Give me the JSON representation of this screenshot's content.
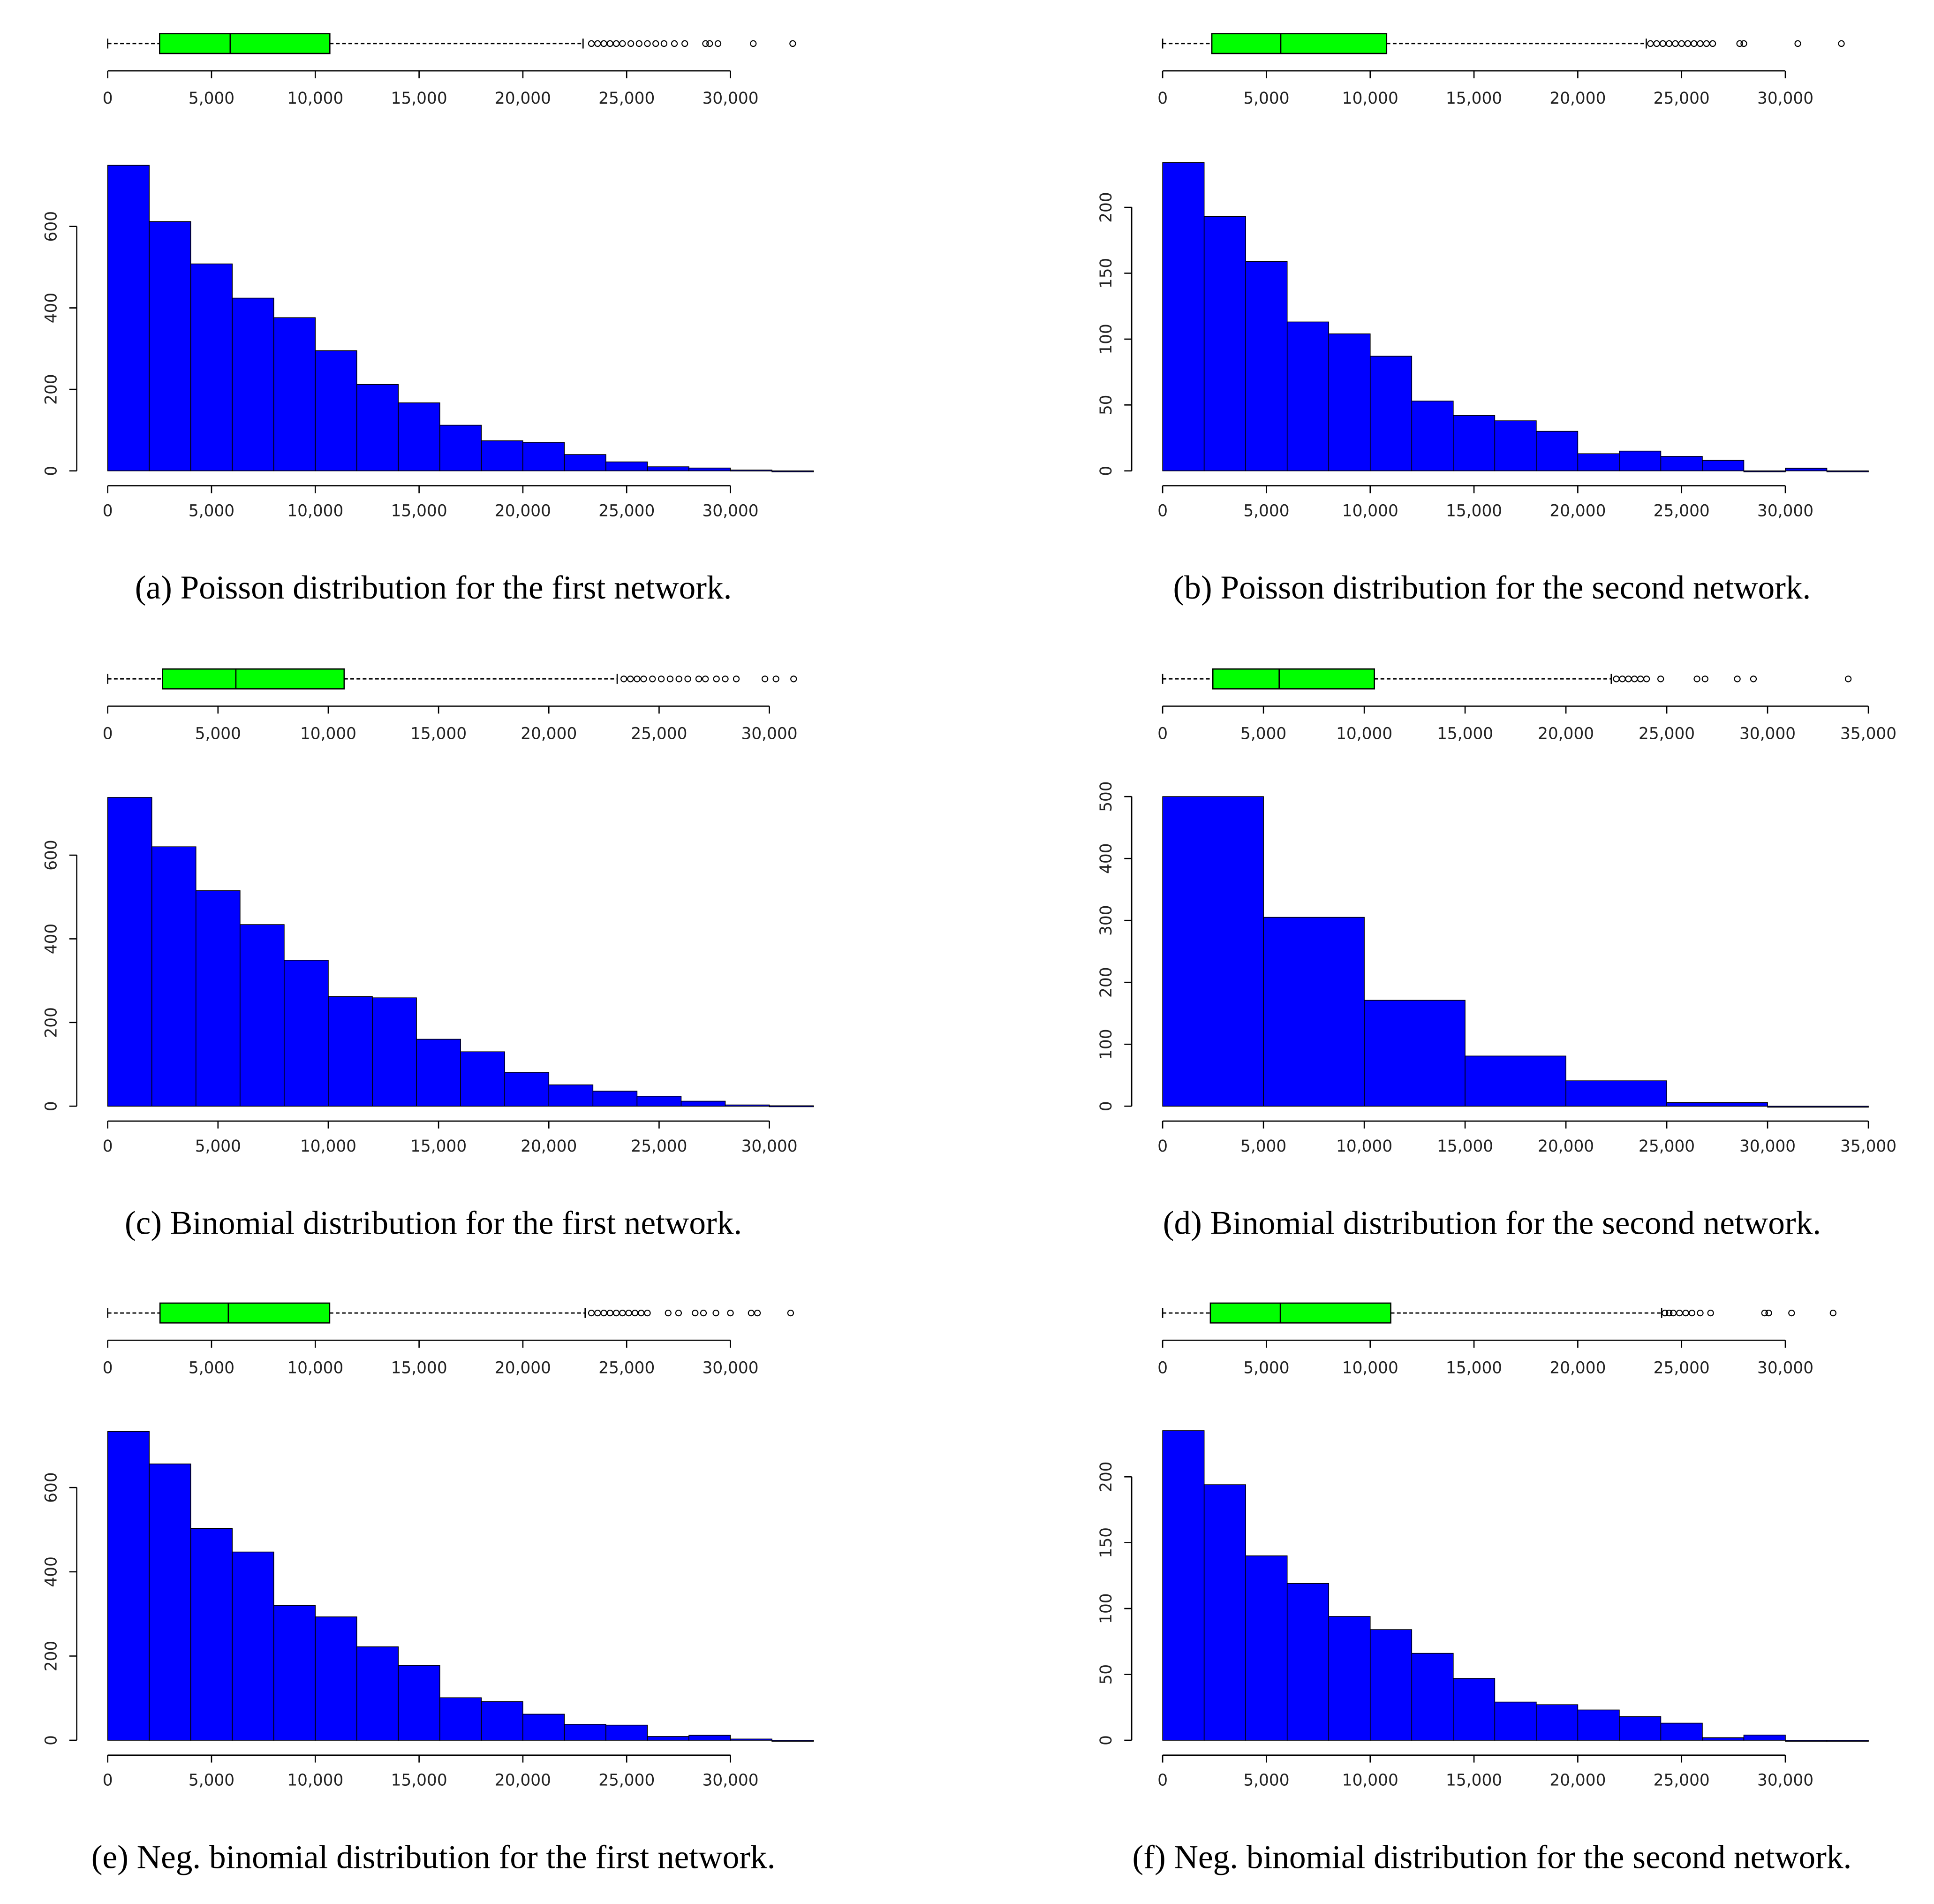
{
  "chart_data": [
    {
      "type": "histogram",
      "caption": "(a) Poisson distribution for the first network.",
      "bins": [
        0,
        2000,
        4000,
        6000,
        8000,
        10000,
        12000,
        14000,
        16000,
        18000,
        20000,
        22000,
        24000,
        26000,
        28000,
        30000,
        32000,
        34000
      ],
      "counts": [
        750,
        612,
        508,
        424,
        376,
        295,
        212,
        167,
        112,
        74,
        70,
        40,
        22,
        10,
        7,
        2,
        0
      ],
      "color": "#0000ff",
      "xlim": [
        0,
        34000
      ],
      "xticks": [
        0,
        {
          "value": 5000,
          "label": "5,000"
        },
        {
          "value": 10000,
          "label": "10,000"
        },
        {
          "value": 15000,
          "label": "15,000"
        },
        {
          "value": 20000,
          "label": "20,000"
        },
        {
          "value": 25000,
          "label": "25,000"
        },
        {
          "value": 30000,
          "label": "30,000"
        }
      ],
      "ylim": [
        0,
        760
      ],
      "yticks": [
        0,
        200,
        400,
        600
      ],
      "box": {
        "color": "#00ff00",
        "whisker_low": 0,
        "q1": 2500,
        "median": 5900,
        "q3": 10700,
        "whisker_high": 22900,
        "outliers": [
          23300,
          23600,
          23900,
          24200,
          24500,
          24800,
          25200,
          25600,
          26000,
          26400,
          26800,
          27300,
          27800,
          28800,
          29000,
          29400,
          31100,
          33000
        ]
      }
    },
    {
      "type": "histogram",
      "caption": "(b) Poisson distribution for the second network.",
      "bins": [
        0,
        2000,
        4000,
        6000,
        8000,
        10000,
        12000,
        14000,
        16000,
        18000,
        20000,
        22000,
        24000,
        26000,
        28000,
        30000,
        32000,
        34000
      ],
      "counts": [
        234,
        193,
        159,
        113,
        104,
        87,
        53,
        42,
        38,
        30,
        13,
        15,
        11,
        8,
        0,
        2,
        0
      ],
      "color": "#0000ff",
      "xlim": [
        0,
        34000
      ],
      "xticks": [
        0,
        {
          "value": 5000,
          "label": "5,000"
        },
        {
          "value": 10000,
          "label": "10,000"
        },
        {
          "value": 15000,
          "label": "15,000"
        },
        {
          "value": 20000,
          "label": "20,000"
        },
        {
          "value": 25000,
          "label": "25,000"
        },
        {
          "value": 30000,
          "label": "30,000"
        }
      ],
      "ylim": [
        0,
        235
      ],
      "yticks": [
        0,
        50,
        100,
        150,
        200
      ],
      "box": {
        "color": "#00ff00",
        "whisker_low": 0,
        "q1": 2370,
        "median": 5690,
        "q3": 10790,
        "whisker_high": 23300,
        "outliers": [
          23500,
          23800,
          24100,
          24400,
          24700,
          25000,
          25300,
          25600,
          25900,
          26200,
          26500,
          27800,
          28000,
          30600,
          32700
        ]
      }
    },
    {
      "type": "histogram",
      "caption": "(c) Binomial distribution for the first network.",
      "bins": [
        0,
        2000,
        4000,
        6000,
        8000,
        10000,
        12000,
        14000,
        16000,
        18000,
        20000,
        22000,
        24000,
        26000,
        28000,
        30000,
        32000
      ],
      "counts": [
        738,
        620,
        515,
        434,
        349,
        262,
        259,
        160,
        130,
        81,
        51,
        36,
        24,
        12,
        3,
        1
      ],
      "color": "#0000ff",
      "xlim": [
        0,
        32000
      ],
      "xticks": [
        0,
        {
          "value": 5000,
          "label": "5,000"
        },
        {
          "value": 10000,
          "label": "10,000"
        },
        {
          "value": 15000,
          "label": "15,000"
        },
        {
          "value": 20000,
          "label": "20,000"
        },
        {
          "value": 25000,
          "label": "25,000"
        },
        {
          "value": 30000,
          "label": "30,000"
        }
      ],
      "ylim": [
        0,
        740
      ],
      "yticks": [
        0,
        200,
        400,
        600
      ],
      "box": {
        "color": "#00ff00",
        "whisker_low": 0,
        "q1": 2480,
        "median": 5810,
        "q3": 10720,
        "whisker_high": 23100,
        "outliers": [
          23400,
          23700,
          24000,
          24300,
          24700,
          25100,
          25500,
          25900,
          26300,
          26800,
          27100,
          27600,
          28000,
          28500,
          29800,
          30300,
          31100
        ]
      }
    },
    {
      "type": "histogram",
      "caption": "(d) Binomial distribution for the second network.",
      "bins": [
        0,
        5000,
        10000,
        15000,
        20000,
        25000,
        30000,
        35000
      ],
      "counts": [
        500,
        305,
        171,
        81,
        41,
        6,
        0
      ],
      "color": "#0000ff",
      "xlim": [
        0,
        35000
      ],
      "xticks": [
        0,
        {
          "value": 5000,
          "label": "5,000"
        },
        {
          "value": 10000,
          "label": "10,000"
        },
        {
          "value": 15000,
          "label": "15,000"
        },
        {
          "value": 20000,
          "label": "20,000"
        },
        {
          "value": 25000,
          "label": "25,000"
        },
        {
          "value": 30000,
          "label": "30,000"
        },
        {
          "value": 35000,
          "label": "35,000"
        }
      ],
      "ylim": [
        0,
        500
      ],
      "yticks": [
        0,
        100,
        200,
        300,
        400,
        500
      ],
      "box": {
        "color": "#00ff00",
        "whisker_low": 0,
        "q1": 2490,
        "median": 5780,
        "q3": 10500,
        "whisker_high": 22250,
        "outliers": [
          22500,
          22800,
          23100,
          23400,
          23700,
          24000,
          24700,
          26500,
          26900,
          28500,
          29300,
          34000
        ]
      }
    },
    {
      "type": "histogram",
      "caption": "(e) Neg. binomial distribution for the first network.",
      "bins": [
        0,
        2000,
        4000,
        6000,
        8000,
        10000,
        12000,
        14000,
        16000,
        18000,
        20000,
        22000,
        24000,
        26000,
        28000,
        30000,
        32000,
        34000
      ],
      "counts": [
        733,
        656,
        503,
        447,
        320,
        293,
        222,
        178,
        101,
        92,
        62,
        38,
        36,
        9,
        12,
        3,
        0
      ],
      "color": "#0000ff",
      "xlim": [
        0,
        34000
      ],
      "xticks": [
        0,
        {
          "value": 5000,
          "label": "5,000"
        },
        {
          "value": 10000,
          "label": "10,000"
        },
        {
          "value": 15000,
          "label": "15,000"
        },
        {
          "value": 20000,
          "label": "20,000"
        },
        {
          "value": 25000,
          "label": "25,000"
        },
        {
          "value": 30000,
          "label": "30,000"
        }
      ],
      "ylim": [
        0,
        735
      ],
      "yticks": [
        0,
        200,
        400,
        600
      ],
      "box": {
        "color": "#00ff00",
        "whisker_low": 0,
        "q1": 2520,
        "median": 5810,
        "q3": 10690,
        "whisker_high": 23000,
        "outliers": [
          23300,
          23600,
          23900,
          24200,
          24500,
          24800,
          25100,
          25400,
          25700,
          26000,
          27000,
          27500,
          28300,
          28700,
          29300,
          30000,
          31000,
          31300,
          32900
        ]
      }
    },
    {
      "type": "histogram",
      "caption": "(f) Neg. binomial distribution for the second network.",
      "bins": [
        0,
        2000,
        4000,
        6000,
        8000,
        10000,
        12000,
        14000,
        16000,
        18000,
        20000,
        22000,
        24000,
        26000,
        28000,
        30000,
        32000,
        34000
      ],
      "counts": [
        235,
        194,
        140,
        119,
        94,
        84,
        66,
        47,
        29,
        27,
        23,
        18,
        13,
        2,
        4,
        0,
        0
      ],
      "color": "#0000ff",
      "xlim": [
        0,
        34000
      ],
      "xticks": [
        0,
        {
          "value": 5000,
          "label": "5,000"
        },
        {
          "value": 10000,
          "label": "10,000"
        },
        {
          "value": 15000,
          "label": "15,000"
        },
        {
          "value": 20000,
          "label": "20,000"
        },
        {
          "value": 25000,
          "label": "25,000"
        },
        {
          "value": 30000,
          "label": "30,000"
        }
      ],
      "ylim": [
        0,
        235
      ],
      "yticks": [
        0,
        50,
        100,
        150,
        200
      ],
      "box": {
        "color": "#00ff00",
        "whisker_low": 0,
        "q1": 2300,
        "median": 5670,
        "q3": 10990,
        "whisker_high": 24040,
        "outliers": [
          24200,
          24400,
          24600,
          24900,
          25200,
          25500,
          25900,
          26400,
          29000,
          29200,
          30300,
          32300
        ]
      }
    }
  ]
}
